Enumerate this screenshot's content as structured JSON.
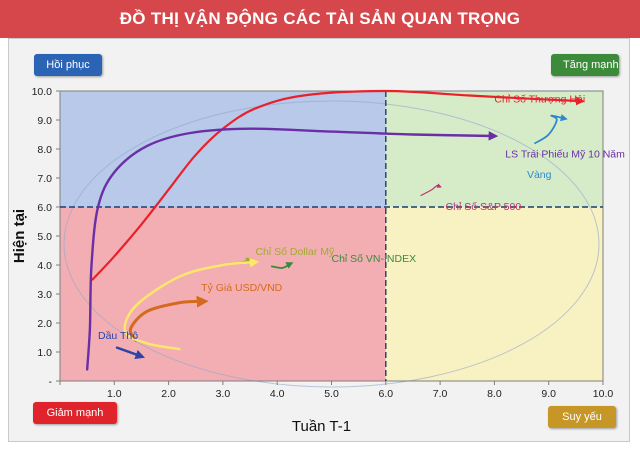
{
  "header": {
    "title": "ĐỒ THỊ VẬN ĐỘNG CÁC TÀI SẢN QUAN TRỌNG"
  },
  "quadrants": {
    "top_left": "Hồi phục",
    "top_right": "Tăng mạnh",
    "bottom_left": "Giảm mạnh",
    "bottom_right": "Suy yếu"
  },
  "colors": {
    "top_left": "#b8c9ea",
    "top_right": "#d6ecc9",
    "bottom_left": "#f3aeb3",
    "bottom_right": "#f8f1c2",
    "midline": "#1f3a6e",
    "badge_top_left": "#2b63b5",
    "badge_top_right": "#3c8b3a",
    "badge_bottom_left": "#e0242c",
    "badge_bottom_right": "#c69626"
  },
  "chart_data": {
    "type": "scatter",
    "xlabel": "Tuần T-1",
    "ylabel": "Hiện tại",
    "xlim": [
      0,
      10
    ],
    "ylim": [
      0,
      10
    ],
    "x_ticks": [
      "",
      "1.0",
      "2.0",
      "3.0",
      "4.0",
      "5.0",
      "6.0",
      "7.0",
      "8.0",
      "9.0",
      "10.0"
    ],
    "y_ticks": [
      "-",
      "1.0",
      "2.0",
      "3.0",
      "4.0",
      "5.0",
      "6.0",
      "7.0",
      "8.0",
      "9.0",
      "10.0"
    ],
    "midlines": {
      "x": 6,
      "y": 6
    },
    "grid": false,
    "series": [
      {
        "name": "Chỉ Số Thượng Hải",
        "color": "#e8212b",
        "width": 2.2,
        "points": [
          [
            0.6,
            3.5
          ],
          [
            1.0,
            4.3
          ],
          [
            1.5,
            5.4
          ],
          [
            2.0,
            6.6
          ],
          [
            2.5,
            7.8
          ],
          [
            3.0,
            8.7
          ],
          [
            3.6,
            9.4
          ],
          [
            4.5,
            9.85
          ],
          [
            6.0,
            10.0
          ],
          [
            7.5,
            9.85
          ],
          [
            8.5,
            9.75
          ],
          [
            9.6,
            9.65
          ]
        ],
        "label_at": [
          8.0,
          9.6
        ]
      },
      {
        "name": "LS Trái Phiếu Mỹ 10 Năm",
        "color": "#6a2fa6",
        "width": 2.4,
        "points": [
          [
            0.5,
            0.4
          ],
          [
            0.55,
            1.8
          ],
          [
            0.58,
            4.0
          ],
          [
            0.7,
            6.0
          ],
          [
            1.0,
            7.2
          ],
          [
            1.6,
            8.1
          ],
          [
            2.4,
            8.55
          ],
          [
            3.5,
            8.7
          ],
          [
            5.0,
            8.6
          ],
          [
            6.5,
            8.5
          ],
          [
            8.0,
            8.45
          ]
        ],
        "label_at": [
          8.2,
          7.7
        ]
      },
      {
        "name": "Vàng",
        "color": "#2e88cf",
        "width": 1.8,
        "points": [
          [
            8.75,
            8.2
          ],
          [
            9.0,
            8.5
          ],
          [
            9.15,
            9.0
          ],
          [
            9.05,
            9.15
          ],
          [
            9.3,
            9.05
          ]
        ],
        "label_at": [
          8.6,
          7.0
        ]
      },
      {
        "name": "Chỉ Số S&P 500",
        "color": "#c0306f",
        "width": 1.2,
        "points": [
          [
            6.65,
            6.4
          ],
          [
            6.85,
            6.6
          ],
          [
            6.95,
            6.75
          ],
          [
            7.0,
            6.7
          ]
        ],
        "label_at": [
          7.1,
          5.9
        ]
      },
      {
        "name": "Chỉ Số Dollar Mỹ",
        "color": "#a4a834",
        "width": 1.6,
        "points": [
          [
            3.1,
            4.05
          ],
          [
            3.35,
            4.1
          ],
          [
            3.5,
            4.2
          ]
        ],
        "label_at": [
          3.6,
          4.35
        ]
      },
      {
        "name": "Chỉ Số VN-INDEX",
        "color": "#3b8a3a",
        "width": 1.8,
        "points": [
          [
            3.9,
            3.95
          ],
          [
            4.1,
            3.9
          ],
          [
            4.25,
            4.05
          ]
        ],
        "label_at": [
          5.0,
          4.1
        ]
      },
      {
        "name": "Tỷ Giá USD/VND",
        "color": "#d56a1c",
        "width": 3.0,
        "points": [
          [
            1.4,
            1.4
          ],
          [
            1.3,
            1.8
          ],
          [
            1.6,
            2.4
          ],
          [
            2.2,
            2.7
          ],
          [
            2.65,
            2.75
          ]
        ],
        "label_at": [
          2.6,
          3.1
        ]
      },
      {
        "name": "",
        "color": "#fde86a",
        "width": 2.4,
        "points": [
          [
            2.2,
            1.1
          ],
          [
            1.6,
            1.3
          ],
          [
            1.2,
            1.7
          ],
          [
            1.4,
            2.6
          ],
          [
            2.2,
            3.6
          ],
          [
            3.0,
            4.0
          ],
          [
            3.6,
            4.1
          ]
        ],
        "label_at": null
      },
      {
        "name": "Dầu Thô",
        "color": "#2a44a8",
        "width": 2.4,
        "points": [
          [
            1.05,
            1.15
          ],
          [
            1.5,
            0.85
          ]
        ],
        "label_at": [
          0.7,
          1.45
        ]
      }
    ]
  }
}
